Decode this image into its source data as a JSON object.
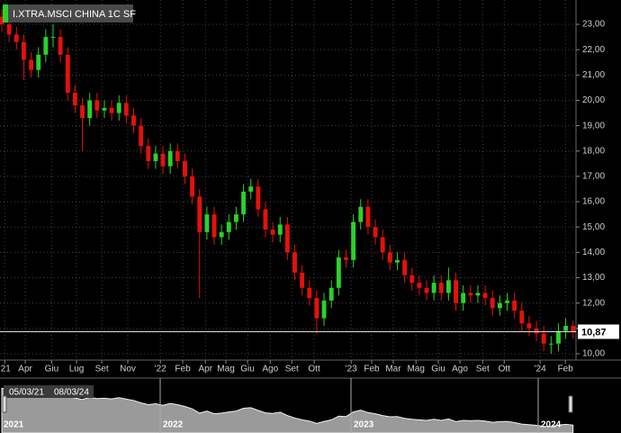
{
  "chart_data": {
    "type": "candlestick",
    "title": "I.XTRA.MSCI CHINA 1C SF",
    "up_color": "#2bd12b",
    "down_color": "#e3120b",
    "grid": true,
    "xlim": [
      -0.5,
      156.8
    ],
    "ylim": [
      9.75,
      23.96
    ],
    "xticks": [
      {
        "value": 0.8,
        "label": "'21"
      },
      {
        "value": 6.4,
        "label": "Apr"
      },
      {
        "value": 13.6,
        "label": "Giu"
      },
      {
        "value": 20.4,
        "label": "Lug"
      },
      {
        "value": 27.3,
        "label": "Set"
      },
      {
        "value": 34.4,
        "label": "Nov"
      },
      {
        "value": 43.3,
        "label": "'22"
      },
      {
        "value": 49.4,
        "label": "Feb"
      },
      {
        "value": 55.6,
        "label": "Apr"
      },
      {
        "value": 61.2,
        "label": "Mag"
      },
      {
        "value": 67.1,
        "label": "Giu"
      },
      {
        "value": 73.3,
        "label": "Ago"
      },
      {
        "value": 79.2,
        "label": "Set"
      },
      {
        "value": 85.3,
        "label": "Ott"
      },
      {
        "value": 95.4,
        "label": "'23"
      },
      {
        "value": 101,
        "label": "Feb"
      },
      {
        "value": 106.9,
        "label": "Mar"
      },
      {
        "value": 113.1,
        "label": "Mag"
      },
      {
        "value": 119.2,
        "label": "Giu"
      },
      {
        "value": 125.1,
        "label": "Ago"
      },
      {
        "value": 131.3,
        "label": "Set"
      },
      {
        "value": 137.2,
        "label": "Ott"
      },
      {
        "value": 147,
        "label": "'24"
      },
      {
        "value": 153.9,
        "label": "Feb"
      }
    ],
    "yticks": [
      {
        "value": 10,
        "label": "10,00"
      },
      {
        "value": 11,
        "label": "11,00"
      },
      {
        "value": 12,
        "label": "12,00"
      },
      {
        "value": 13,
        "label": "13,00"
      },
      {
        "value": 14,
        "label": "14,00"
      },
      {
        "value": 15,
        "label": "15,00"
      },
      {
        "value": 16,
        "label": "16,00"
      },
      {
        "value": 17,
        "label": "17,00"
      },
      {
        "value": 18,
        "label": "18,00"
      },
      {
        "value": 19,
        "label": "19,00"
      },
      {
        "value": 20,
        "label": "20,00"
      },
      {
        "value": 21,
        "label": "21,00"
      },
      {
        "value": 22,
        "label": "22,00"
      },
      {
        "value": 23,
        "label": "23,00"
      }
    ],
    "last": {
      "value": 10.87,
      "label": "10,87"
    },
    "x": [
      0,
      2,
      4,
      6,
      8,
      10,
      12,
      14,
      16,
      18,
      20,
      22,
      24,
      26,
      28,
      30,
      32,
      34,
      36,
      38,
      40,
      42,
      44,
      46,
      48,
      50,
      52,
      54,
      56,
      58,
      60,
      62,
      64,
      66,
      68,
      70,
      72,
      74,
      76,
      78,
      80,
      82,
      84,
      86,
      88,
      90,
      92,
      94,
      96,
      98,
      100,
      102,
      104,
      106,
      108,
      110,
      112,
      114,
      116,
      118,
      120,
      122,
      124,
      126,
      128,
      130,
      132,
      134,
      136,
      138,
      140,
      142,
      144,
      146,
      148,
      150,
      152,
      154,
      156
    ],
    "open": [
      23.3,
      23.0,
      22.6,
      22.3,
      21.6,
      21.2,
      21.8,
      22.5,
      22.5,
      21.8,
      20.3,
      19.8,
      19.3,
      20.0,
      19.6,
      19.7,
      19.5,
      19.9,
      19.4,
      19.0,
      18.2,
      17.6,
      17.9,
      17.4,
      18.0,
      17.6,
      17.0,
      16.2,
      14.8,
      15.5,
      14.6,
      14.8,
      15.2,
      15.5,
      16.4,
      16.6,
      15.7,
      14.9,
      14.7,
      15.1,
      14.0,
      13.2,
      12.6,
      12.2,
      11.4,
      12.1,
      12.6,
      13.8,
      13.7,
      15.2,
      15.8,
      15.0,
      14.6,
      14.0,
      13.6,
      13.7,
      13.1,
      12.8,
      12.6,
      12.4,
      12.8,
      12.4,
      12.9,
      12.0,
      12.4,
      12.3,
      12.4,
      12.2,
      11.8,
      12.0,
      12.1,
      11.7,
      11.2,
      11.0,
      10.8,
      10.4,
      10.4,
      10.9,
      11.1
    ],
    "high": [
      23.6,
      23.3,
      22.9,
      22.6,
      21.9,
      22.1,
      22.8,
      23.0,
      22.8,
      22.1,
      20.6,
      20.1,
      20.3,
      20.3,
      20.0,
      20.0,
      20.2,
      20.2,
      19.7,
      19.3,
      18.5,
      18.2,
      18.2,
      18.3,
      18.3,
      17.9,
      17.3,
      16.5,
      15.8,
      15.8,
      15.1,
      15.5,
      15.8,
      16.7,
      16.9,
      16.9,
      16.0,
      15.2,
      15.4,
      15.4,
      14.3,
      13.5,
      12.9,
      12.5,
      12.4,
      12.9,
      14.1,
      14.1,
      15.5,
      16.1,
      16.1,
      15.3,
      14.9,
      14.3,
      14.0,
      14.0,
      13.4,
      13.1,
      12.9,
      13.1,
      13.1,
      13.4,
      13.2,
      12.7,
      12.7,
      12.7,
      12.7,
      12.5,
      12.3,
      12.4,
      12.4,
      12.0,
      11.5,
      11.3,
      11.1,
      10.7,
      11.2,
      11.4,
      11.3
    ],
    "low": [
      22.7,
      22.3,
      22.0,
      20.8,
      20.9,
      20.9,
      21.5,
      22.1,
      21.5,
      20.0,
      19.5,
      18.0,
      19.0,
      19.3,
      19.3,
      19.2,
      19.2,
      19.1,
      18.7,
      17.9,
      17.3,
      17.3,
      17.1,
      17.1,
      17.3,
      16.7,
      15.9,
      12.2,
      14.5,
      14.3,
      14.3,
      14.5,
      14.9,
      15.2,
      16.1,
      15.4,
      14.6,
      14.4,
      14.4,
      13.7,
      12.9,
      12.3,
      11.9,
      10.8,
      11.1,
      11.8,
      12.3,
      13.4,
      13.4,
      14.9,
      14.7,
      14.3,
      13.7,
      13.3,
      13.3,
      12.8,
      12.5,
      12.3,
      12.1,
      12.1,
      12.1,
      12.1,
      11.7,
      11.7,
      12.0,
      12.0,
      11.9,
      11.5,
      11.5,
      11.7,
      11.4,
      10.9,
      10.7,
      10.5,
      10.1,
      10.0,
      10.1,
      10.6,
      10.6
    ],
    "close": [
      23.0,
      22.6,
      22.3,
      21.6,
      21.2,
      21.8,
      22.5,
      22.5,
      21.8,
      20.3,
      19.8,
      19.3,
      20.0,
      19.6,
      19.7,
      19.5,
      19.9,
      19.4,
      19.0,
      18.2,
      17.6,
      17.9,
      17.4,
      18.0,
      17.6,
      17.0,
      16.2,
      14.8,
      15.5,
      14.6,
      14.8,
      15.2,
      15.5,
      16.4,
      16.6,
      15.7,
      14.9,
      14.7,
      15.1,
      14.0,
      13.2,
      12.6,
      12.2,
      11.4,
      12.1,
      12.6,
      13.8,
      13.7,
      15.2,
      15.8,
      15.0,
      14.6,
      14.0,
      13.6,
      13.7,
      13.1,
      12.8,
      12.6,
      12.4,
      12.8,
      12.4,
      12.9,
      12.0,
      12.4,
      12.3,
      12.4,
      12.2,
      11.8,
      12.0,
      12.1,
      11.7,
      11.2,
      11.0,
      10.8,
      10.4,
      10.4,
      10.9,
      11.1,
      10.87
    ]
  },
  "navigator": {
    "range": [
      "05/03/21",
      "08/03/24"
    ],
    "years": [
      "2021",
      "2022",
      "2023",
      "2024"
    ]
  }
}
